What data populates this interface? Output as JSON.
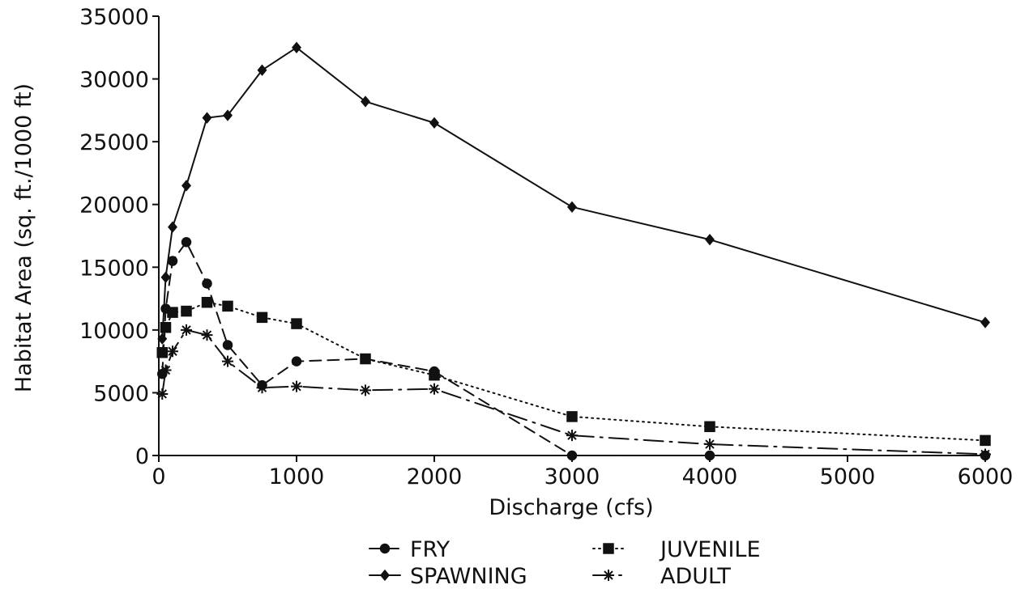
{
  "chart_data": {
    "type": "line",
    "title": "",
    "xlabel": "Discharge (cfs)",
    "ylabel": "Habitat Area (sq. ft./1000 ft)",
    "xlim": [
      0,
      6000
    ],
    "ylim": [
      0,
      35000
    ],
    "x_ticks": [
      0,
      1000,
      2000,
      3000,
      4000,
      5000,
      6000
    ],
    "y_ticks": [
      0,
      5000,
      10000,
      15000,
      20000,
      25000,
      30000,
      35000
    ],
    "x_tick_labels": [
      "0",
      "1000",
      "2000",
      "3000",
      "4000",
      "5000",
      "6000"
    ],
    "y_tick_labels": [
      "0",
      "5000",
      "10000",
      "15000",
      "20000",
      "25000",
      "30000",
      "35000"
    ],
    "grid": false,
    "legend_placement": "bottom",
    "series": [
      {
        "name": "FRY",
        "marker": "circle",
        "line_style": "dashed",
        "x": [
          25,
          50,
          100,
          200,
          350,
          500,
          750,
          1000,
          1500,
          2000,
          3000,
          4000,
          6000
        ],
        "y": [
          6500,
          11700,
          15500,
          17000,
          13700,
          8800,
          5600,
          7500,
          7700,
          6700,
          0,
          0,
          0
        ]
      },
      {
        "name": "SPAWNING",
        "marker": "diamond",
        "line_style": "solid",
        "x": [
          25,
          50,
          100,
          200,
          350,
          500,
          750,
          1000,
          1500,
          2000,
          3000,
          4000,
          6000
        ],
        "y": [
          9300,
          14200,
          18200,
          21500,
          26900,
          27100,
          30700,
          32500,
          28200,
          26500,
          19800,
          17200,
          10600
        ]
      },
      {
        "name": "JUVENILE",
        "marker": "square",
        "line_style": "dotted",
        "x": [
          25,
          50,
          100,
          200,
          350,
          500,
          750,
          1000,
          1500,
          2000,
          3000,
          4000,
          6000
        ],
        "y": [
          8200,
          10200,
          11400,
          11500,
          12200,
          11900,
          11000,
          10500,
          7700,
          6400,
          3100,
          2300,
          1200
        ]
      },
      {
        "name": "ADULT",
        "marker": "star",
        "line_style": "dash-dot",
        "x": [
          25,
          50,
          100,
          200,
          350,
          500,
          750,
          1000,
          1500,
          2000,
          3000,
          4000,
          6000
        ],
        "y": [
          4900,
          6800,
          8300,
          10000,
          9600,
          7500,
          5400,
          5500,
          5200,
          5300,
          1600,
          900,
          100
        ]
      }
    ],
    "legend": [
      {
        "label": "FRY"
      },
      {
        "label": "JUVENILE"
      },
      {
        "label": "SPAWNING"
      },
      {
        "label": "ADULT"
      }
    ]
  }
}
